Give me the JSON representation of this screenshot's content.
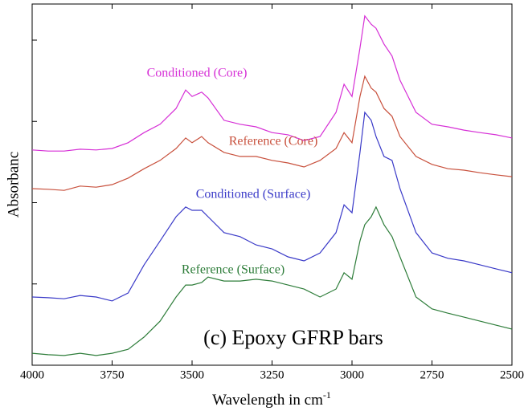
{
  "chart_data": {
    "type": "line",
    "x_label": {
      "text": "Wavelength in cm",
      "superscript": "-1"
    },
    "y_label": "Absorbanc",
    "annotation": "(c) Epoxy GFRP bars",
    "xlim": [
      4000,
      2500
    ],
    "xticks": [
      4000,
      3750,
      3500,
      3250,
      3000,
      2750,
      2500
    ],
    "ylim": [
      0,
      100
    ],
    "yticks": [
      22.5,
      45,
      67.5,
      90
    ],
    "x": [
      4000,
      3950,
      3900,
      3850,
      3800,
      3750,
      3700,
      3650,
      3600,
      3550,
      3520,
      3500,
      3470,
      3450,
      3400,
      3350,
      3300,
      3250,
      3200,
      3150,
      3100,
      3050,
      3025,
      3000,
      2975,
      2960,
      2940,
      2925,
      2900,
      2875,
      2850,
      2800,
      2750,
      2700,
      2650,
      2600,
      2550,
      2500
    ],
    "series": [
      {
        "name": "Conditioned (Core)",
        "color": "#d62fd6",
        "values": [
          59.6,
          59.3,
          59.3,
          59.8,
          59.6,
          60,
          61.6,
          64.4,
          66.7,
          71.1,
          76.2,
          74.4,
          75.6,
          74,
          67.8,
          66.7,
          66,
          64.4,
          63.8,
          62.2,
          63.3,
          70,
          77.8,
          74.4,
          87.8,
          96.7,
          94.4,
          93.3,
          88.9,
          85.6,
          78.9,
          70,
          66.7,
          66,
          65.1,
          64.4,
          63.8,
          62.9
        ]
      },
      {
        "name": "Reference (Core)",
        "color": "#c8503c",
        "values": [
          48.9,
          48.7,
          48.4,
          49.6,
          49.3,
          50,
          51.8,
          54.4,
          56.7,
          60,
          62.9,
          61.6,
          63.3,
          61.6,
          58.9,
          57.8,
          57.8,
          56.7,
          56,
          54.9,
          56.7,
          60,
          64.4,
          61.6,
          74.4,
          80,
          76.7,
          75.6,
          71.1,
          68.9,
          63.3,
          57.8,
          55.6,
          54.4,
          54,
          53.3,
          52.7,
          52.2
        ]
      },
      {
        "name": "Conditioned (Surface)",
        "color": "#3a3ac8",
        "values": [
          18.9,
          18.7,
          18.4,
          19.3,
          18.9,
          17.8,
          20,
          27.8,
          34.4,
          41.1,
          43.8,
          42.9,
          42.9,
          41.1,
          36.7,
          35.6,
          33.3,
          32.2,
          30,
          28.9,
          31.1,
          36.7,
          44.4,
          42.2,
          58.9,
          70,
          67.8,
          63.3,
          57.8,
          56.7,
          48.9,
          36.7,
          31.1,
          29.6,
          28.9,
          27.8,
          26.7,
          25.6
        ]
      },
      {
        "name": "Reference (Surface)",
        "color": "#2e7d3a",
        "values": [
          3.3,
          2.9,
          2.7,
          3.3,
          2.7,
          3.3,
          4.4,
          7.8,
          12.2,
          18.9,
          22.2,
          22.2,
          22.9,
          24.4,
          23.3,
          23.3,
          23.8,
          23.3,
          22.2,
          21.1,
          18.9,
          21.1,
          25.6,
          23.8,
          34.4,
          38.9,
          41.1,
          43.8,
          38.9,
          35.6,
          30,
          18.9,
          15.6,
          14.4,
          13.3,
          12.2,
          11.1,
          10
        ]
      }
    ]
  }
}
